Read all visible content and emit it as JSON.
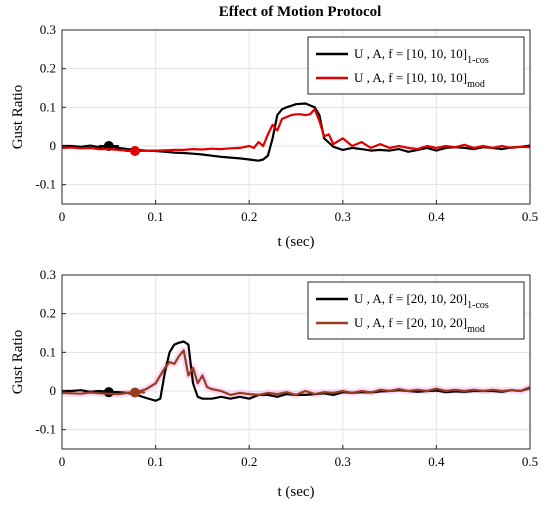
{
  "figure": {
    "title": "Effect of Motion Protocol"
  },
  "chart_data": [
    {
      "type": "line",
      "xlabel": "t (sec)",
      "ylabel": "Gust Ratio",
      "xlim": [
        0,
        0.5
      ],
      "ylim": [
        -0.15,
        0.3
      ],
      "xticks": [
        0,
        0.1,
        0.2,
        0.3,
        0.4,
        0.5
      ],
      "xtick_labels": [
        "0",
        "0.1",
        "0.2",
        "0.3",
        "0.4",
        "0.5"
      ],
      "yticks": [
        -0.1,
        0,
        0.1,
        0.2,
        0.3
      ],
      "ytick_labels": [
        "-0.1",
        "0",
        "0.1",
        "0.2",
        "0.3"
      ],
      "grid": true,
      "legend_position": "top-right",
      "series": [
        {
          "name": "U , A, f = [10, 10, 10]",
          "name_sub": "1-cos",
          "color": "#000000",
          "x": [
            0,
            0.01,
            0.02,
            0.03,
            0.04,
            0.05,
            0.06,
            0.07,
            0.08,
            0.09,
            0.1,
            0.11,
            0.12,
            0.13,
            0.14,
            0.15,
            0.16,
            0.17,
            0.18,
            0.19,
            0.2,
            0.21,
            0.215,
            0.22,
            0.225,
            0.23,
            0.235,
            0.24,
            0.25,
            0.26,
            0.265,
            0.27,
            0.275,
            0.28,
            0.29,
            0.3,
            0.31,
            0.32,
            0.33,
            0.34,
            0.35,
            0.36,
            0.37,
            0.38,
            0.39,
            0.4,
            0.41,
            0.42,
            0.43,
            0.44,
            0.45,
            0.46,
            0.47,
            0.48,
            0.49,
            0.5
          ],
          "y": [
            0,
            0,
            -0.002,
            0.001,
            -0.003,
            0,
            -0.005,
            -0.008,
            -0.01,
            -0.012,
            -0.013,
            -0.015,
            -0.017,
            -0.018,
            -0.02,
            -0.022,
            -0.025,
            -0.028,
            -0.03,
            -0.032,
            -0.035,
            -0.038,
            -0.035,
            -0.025,
            0.02,
            0.08,
            0.095,
            0.1,
            0.108,
            0.11,
            0.105,
            0.1,
            0.08,
            0.02,
            -0.002,
            -0.01,
            -0.005,
            -0.008,
            -0.012,
            -0.01,
            -0.012,
            -0.008,
            -0.015,
            -0.01,
            -0.005,
            -0.012,
            -0.005,
            -0.003,
            -0.005,
            -0.008,
            -0.003,
            -0.005,
            -0.008,
            -0.004,
            -0.002,
            0.001
          ],
          "markers": [
            {
              "x": 0.05,
              "y": 0
            }
          ]
        },
        {
          "name": "U , A, f = [10, 10, 10]",
          "name_sub": "mod",
          "color": "#e00000",
          "x": [
            0,
            0.01,
            0.02,
            0.03,
            0.04,
            0.05,
            0.06,
            0.07,
            0.08,
            0.09,
            0.1,
            0.11,
            0.12,
            0.13,
            0.14,
            0.15,
            0.16,
            0.17,
            0.18,
            0.19,
            0.2,
            0.205,
            0.21,
            0.215,
            0.22,
            0.225,
            0.23,
            0.235,
            0.24,
            0.245,
            0.25,
            0.255,
            0.26,
            0.265,
            0.27,
            0.275,
            0.28,
            0.285,
            0.29,
            0.3,
            0.31,
            0.32,
            0.33,
            0.34,
            0.35,
            0.36,
            0.37,
            0.38,
            0.39,
            0.4,
            0.41,
            0.42,
            0.43,
            0.44,
            0.45,
            0.46,
            0.47,
            0.48,
            0.49,
            0.5
          ],
          "y": [
            -0.005,
            -0.004,
            -0.006,
            -0.005,
            -0.008,
            -0.008,
            -0.01,
            -0.012,
            -0.013,
            -0.012,
            -0.012,
            -0.011,
            -0.01,
            -0.01,
            -0.008,
            -0.009,
            -0.007,
            -0.008,
            -0.006,
            -0.005,
            0.0,
            -0.005,
            0.01,
            0.0,
            0.03,
            0.055,
            0.04,
            0.07,
            0.075,
            0.08,
            0.082,
            0.082,
            0.08,
            0.082,
            0.095,
            0.065,
            0.025,
            0.03,
            0.005,
            0.02,
            0.0,
            0.01,
            -0.005,
            0.005,
            -0.005,
            0.0,
            -0.005,
            -0.008,
            0.0,
            -0.005,
            0.0,
            -0.003,
            0.003,
            -0.005,
            0.0,
            -0.005,
            0.0,
            -0.005,
            -0.002,
            -0.003
          ],
          "markers": [
            {
              "x": 0.078,
              "y": -0.013
            }
          ]
        }
      ]
    },
    {
      "type": "line",
      "xlabel": "t (sec)",
      "ylabel": "Gust Ratio",
      "xlim": [
        0,
        0.5
      ],
      "ylim": [
        -0.15,
        0.3
      ],
      "xticks": [
        0,
        0.1,
        0.2,
        0.3,
        0.4,
        0.5
      ],
      "xtick_labels": [
        "0",
        "0.1",
        "0.2",
        "0.3",
        "0.4",
        "0.5"
      ],
      "yticks": [
        -0.1,
        0,
        0.1,
        0.2,
        0.3
      ],
      "ytick_labels": [
        "-0.1",
        "0",
        "0.1",
        "0.2",
        "0.3"
      ],
      "grid": true,
      "legend_position": "top-right",
      "series": [
        {
          "name": "U , A, f = [20, 10, 20]",
          "name_sub": "1-cos",
          "color": "#000000",
          "x": [
            0,
            0.01,
            0.02,
            0.03,
            0.04,
            0.05,
            0.06,
            0.07,
            0.08,
            0.09,
            0.1,
            0.105,
            0.11,
            0.115,
            0.12,
            0.125,
            0.13,
            0.135,
            0.14,
            0.145,
            0.15,
            0.16,
            0.17,
            0.18,
            0.19,
            0.2,
            0.21,
            0.22,
            0.23,
            0.24,
            0.25,
            0.26,
            0.27,
            0.28,
            0.29,
            0.3,
            0.31,
            0.32,
            0.33,
            0.34,
            0.35,
            0.36,
            0.37,
            0.38,
            0.39,
            0.4,
            0.41,
            0.42,
            0.43,
            0.44,
            0.45,
            0.46,
            0.47,
            0.48,
            0.49,
            0.5
          ],
          "y": [
            0,
            0,
            0.002,
            -0.002,
            0,
            -0.002,
            -0.003,
            -0.005,
            -0.01,
            -0.018,
            -0.025,
            -0.02,
            0.05,
            0.1,
            0.12,
            0.125,
            0.128,
            0.12,
            0.02,
            -0.015,
            -0.02,
            -0.02,
            -0.015,
            -0.02,
            -0.015,
            -0.02,
            -0.01,
            -0.01,
            -0.015,
            -0.008,
            -0.01,
            -0.01,
            -0.008,
            -0.006,
            -0.01,
            -0.003,
            -0.005,
            -0.003,
            -0.004,
            -0.001,
            0,
            0.002,
            0,
            -0.002,
            0,
            0.001,
            -0.003,
            -0.001,
            -0.002,
            0,
            0,
            0,
            -0.002,
            0.002,
            0,
            0.008
          ],
          "markers": [
            {
              "x": 0.05,
              "y": -0.003
            }
          ]
        },
        {
          "name": "U , A, f = [20, 10, 20]",
          "name_sub": "mod",
          "color": "#993d1f",
          "band_color": "#ee99ee",
          "x": [
            0,
            0.01,
            0.02,
            0.03,
            0.04,
            0.05,
            0.06,
            0.07,
            0.08,
            0.09,
            0.1,
            0.105,
            0.11,
            0.115,
            0.12,
            0.125,
            0.13,
            0.135,
            0.14,
            0.145,
            0.15,
            0.155,
            0.16,
            0.17,
            0.18,
            0.19,
            0.2,
            0.21,
            0.22,
            0.23,
            0.24,
            0.25,
            0.26,
            0.27,
            0.28,
            0.29,
            0.3,
            0.31,
            0.32,
            0.33,
            0.34,
            0.35,
            0.36,
            0.37,
            0.38,
            0.39,
            0.4,
            0.41,
            0.42,
            0.43,
            0.44,
            0.45,
            0.46,
            0.47,
            0.48,
            0.49,
            0.5
          ],
          "y": [
            -0.005,
            -0.006,
            -0.007,
            -0.004,
            -0.006,
            -0.007,
            -0.008,
            -0.005,
            -0.003,
            0.005,
            0.02,
            0.04,
            0.06,
            0.075,
            0.07,
            0.09,
            0.105,
            0.04,
            0.06,
            0.02,
            0.04,
            0.01,
            0.005,
            0.0,
            -0.01,
            -0.005,
            -0.008,
            -0.01,
            -0.005,
            -0.008,
            -0.003,
            -0.01,
            0.0,
            -0.008,
            -0.003,
            -0.005,
            0.0,
            -0.005,
            0.0,
            -0.004,
            0.003,
            0.0,
            0.005,
            0.0,
            0.003,
            0.0,
            0.006,
            0.0,
            0.003,
            0.0,
            0.003,
            0.0,
            0.003,
            0.0,
            0.002,
            0.0,
            0.01
          ],
          "markers": [
            {
              "x": 0.078,
              "y": -0.004
            }
          ]
        }
      ]
    }
  ]
}
